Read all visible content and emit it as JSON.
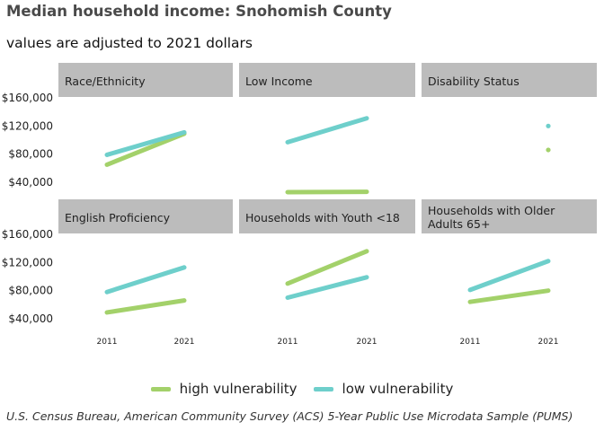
{
  "chart_data": {
    "type": "line",
    "title": "Median household income: Snohomish County",
    "subtitle": "values are adjusted to 2021 dollars",
    "caption": "U.S. Census Bureau, American Community Survey (ACS) 5-Year Public Use Microdata Sample (PUMS)",
    "x": [
      "2011",
      "2021"
    ],
    "y_ticks": [
      "$40,000",
      "$80,000",
      "$120,000",
      "$160,000"
    ],
    "y_tick_values": [
      40000,
      80000,
      120000,
      160000
    ],
    "ylim": [
      25000,
      195000
    ],
    "grid": false,
    "legend_position": "bottom",
    "legend": [
      {
        "name": "high vulnerability",
        "color": "#a3d16a"
      },
      {
        "name": "low vulnerability",
        "color": "#6ecfcb"
      }
    ],
    "panels": [
      {
        "label": "Race/Ethnicity",
        "series": [
          {
            "name": "high vulnerability",
            "values": [
              65000,
              109000
            ]
          },
          {
            "name": "low vulnerability",
            "values": [
              79000,
              111000
            ]
          }
        ]
      },
      {
        "label": "Low Income",
        "series": [
          {
            "name": "high vulnerability",
            "values": [
              26000,
              26500
            ]
          },
          {
            "name": "low vulnerability",
            "values": [
              97000,
              131000
            ]
          }
        ]
      },
      {
        "label": "Disability Status",
        "series": [
          {
            "name": "high vulnerability",
            "values": [
              null,
              86000
            ]
          },
          {
            "name": "low vulnerability",
            "values": [
              null,
              120000
            ]
          }
        ]
      },
      {
        "label": "English Proficiency",
        "series": [
          {
            "name": "high vulnerability",
            "values": [
              49000,
              66000
            ]
          },
          {
            "name": "low vulnerability",
            "values": [
              78000,
              113000
            ]
          }
        ]
      },
      {
        "label": "Households with Youth <18",
        "series": [
          {
            "name": "high vulnerability",
            "values": [
              90000,
              136000
            ]
          },
          {
            "name": "low vulnerability",
            "values": [
              70000,
              99000
            ]
          }
        ]
      },
      {
        "label": "Households with Older Adults 65+",
        "series": [
          {
            "name": "high vulnerability",
            "values": [
              64000,
              80000
            ]
          },
          {
            "name": "low vulnerability",
            "values": [
              81000,
              122000
            ]
          }
        ]
      }
    ]
  }
}
